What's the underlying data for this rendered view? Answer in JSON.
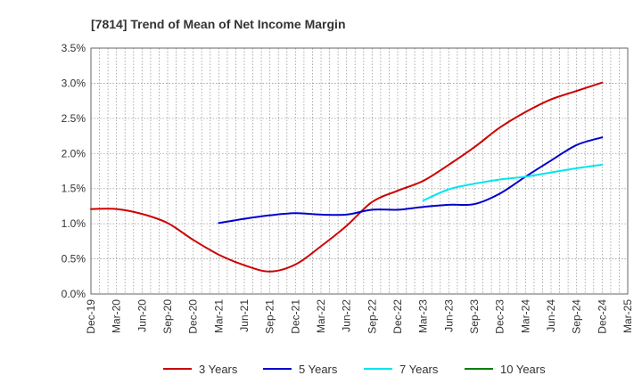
{
  "chart_data": {
    "type": "line",
    "title": "[7814]  Trend of Mean of Net Income Margin",
    "xlabel": "",
    "ylabel": "",
    "ylim": [
      0,
      3.5
    ],
    "yticks": [
      0,
      0.5,
      1.0,
      1.5,
      2.0,
      2.5,
      3.0,
      3.5
    ],
    "ytick_labels": [
      "0.0%",
      "0.5%",
      "1.0%",
      "1.5%",
      "2.0%",
      "2.5%",
      "3.0%",
      "3.5%"
    ],
    "x_start_month": "Dec-19",
    "x_tick_labels": [
      "Dec-19",
      "Mar-20",
      "Jun-20",
      "Sep-20",
      "Dec-20",
      "Mar-21",
      "Jun-21",
      "Sep-21",
      "Dec-21",
      "Mar-22",
      "Jun-22",
      "Sep-22",
      "Dec-22",
      "Mar-23",
      "Jun-23",
      "Sep-23",
      "Dec-23",
      "Mar-24",
      "Jun-24",
      "Sep-24",
      "Dec-24",
      "Mar-25"
    ],
    "grid": true,
    "legend_position": "bottom",
    "series": [
      {
        "name": "3 Years",
        "color": "#cc0000",
        "x": [
          "Dec-19",
          "Mar-20",
          "Jun-20",
          "Sep-20",
          "Dec-20",
          "Mar-21",
          "Jun-21",
          "Sep-21",
          "Dec-21",
          "Mar-22",
          "Jun-22",
          "Sep-22",
          "Dec-22",
          "Mar-23",
          "Jun-23",
          "Sep-23",
          "Dec-23",
          "Mar-24",
          "Jun-24",
          "Sep-24",
          "Dec-24"
        ],
        "values": [
          1.21,
          1.21,
          1.14,
          1.01,
          0.77,
          0.56,
          0.41,
          0.32,
          0.42,
          0.68,
          0.97,
          1.31,
          1.47,
          1.61,
          1.84,
          2.09,
          2.37,
          2.59,
          2.77,
          2.89,
          3.01
        ]
      },
      {
        "name": "5 Years",
        "color": "#0000cc",
        "x": [
          "Mar-21",
          "Jun-21",
          "Sep-21",
          "Dec-21",
          "Mar-22",
          "Jun-22",
          "Sep-22",
          "Dec-22",
          "Mar-23",
          "Jun-23",
          "Sep-23",
          "Dec-23",
          "Mar-24",
          "Jun-24",
          "Sep-24",
          "Dec-24"
        ],
        "values": [
          1.01,
          1.07,
          1.12,
          1.15,
          1.13,
          1.13,
          1.2,
          1.2,
          1.24,
          1.27,
          1.28,
          1.43,
          1.67,
          1.9,
          2.12,
          2.23
        ]
      },
      {
        "name": "7 Years",
        "color": "#00e5ee",
        "x": [
          "Mar-23",
          "Jun-23",
          "Sep-23",
          "Dec-23",
          "Mar-24",
          "Jun-24",
          "Sep-24",
          "Dec-24"
        ],
        "values": [
          1.33,
          1.49,
          1.57,
          1.63,
          1.67,
          1.73,
          1.79,
          1.84
        ]
      },
      {
        "name": "10 Years",
        "color": "#008000",
        "x": [],
        "values": []
      }
    ]
  }
}
